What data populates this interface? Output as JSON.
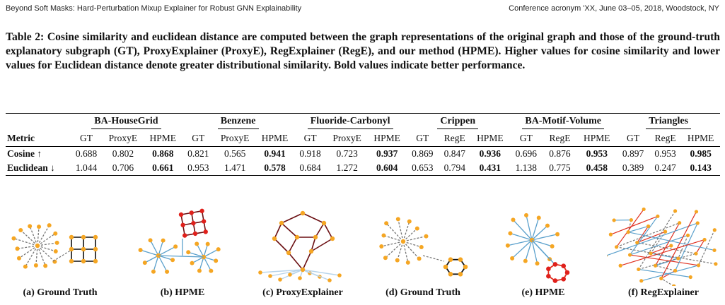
{
  "running_header": {
    "left": "Beyond Soft Masks: Hard-Perturbation Mixup Explainer for Robust GNN Explainability",
    "right": "Conference acronym 'XX, June 03–05, 2018, Woodstock, NY"
  },
  "caption": "Table 2: Cosine similarity and euclidean distance are computed between the graph representations of the original graph and those of the ground-truth explanatory subgraph (GT), ProxyExplainer (ProxyE), RegExplainer (RegE), and our method (HPME). Higher values for cosine similarity and lower values for Euclidean distance denote greater distributional similarity. Bold values indicate better performance.",
  "table": {
    "metric_header": "Metric",
    "groups": [
      {
        "name": "BA-HouseGrid",
        "cols": [
          "GT",
          "ProxyE",
          "HPME"
        ]
      },
      {
        "name": "Benzene",
        "cols": [
          "GT",
          "ProxyE",
          "HPME"
        ]
      },
      {
        "name": "Fluoride-Carbonyl",
        "cols": [
          "GT",
          "ProxyE",
          "HPME"
        ]
      },
      {
        "name": "Crippen",
        "cols": [
          "GT",
          "RegE",
          "HPME"
        ]
      },
      {
        "name": "BA-Motif-Volume",
        "cols": [
          "GT",
          "RegE",
          "HPME"
        ]
      },
      {
        "name": "Triangles",
        "cols": [
          "GT",
          "RegE",
          "HPME"
        ]
      }
    ],
    "rows": [
      {
        "metric": "Cosine ↑",
        "values": [
          "0.688",
          "0.802",
          "0.868",
          "0.821",
          "0.565",
          "0.941",
          "0.918",
          "0.723",
          "0.937",
          "0.869",
          "0.847",
          "0.936",
          "0.696",
          "0.876",
          "0.953",
          "0.897",
          "0.953",
          "0.985"
        ]
      },
      {
        "metric": "Euclidean ↓",
        "values": [
          "1.044",
          "0.706",
          "0.661",
          "0.953",
          "1.471",
          "0.578",
          "0.684",
          "1.272",
          "0.604",
          "0.653",
          "0.794",
          "0.431",
          "1.138",
          "0.775",
          "0.458",
          "0.389",
          "0.247",
          "0.143"
        ]
      }
    ],
    "bold_column_index_in_group": 2
  },
  "figures": [
    {
      "label": "(a) Ground Truth"
    },
    {
      "label": "(b) HPME"
    },
    {
      "label": "(c) ProxyExplainer"
    },
    {
      "label": "(d) Ground Truth"
    },
    {
      "label": "(e) HPME"
    },
    {
      "label": "(f) RegExplainer"
    }
  ],
  "colors": {
    "node_orange": "#f5a623",
    "node_red": "#e0201b",
    "edge_black": "#111111",
    "edge_blue": "#5aa0cc",
    "edge_light_blue": "#b8d4ea",
    "edge_dark_red": "#6b0f12",
    "edge_gray_dashed": "#777777",
    "edge_red": "#e03020"
  }
}
